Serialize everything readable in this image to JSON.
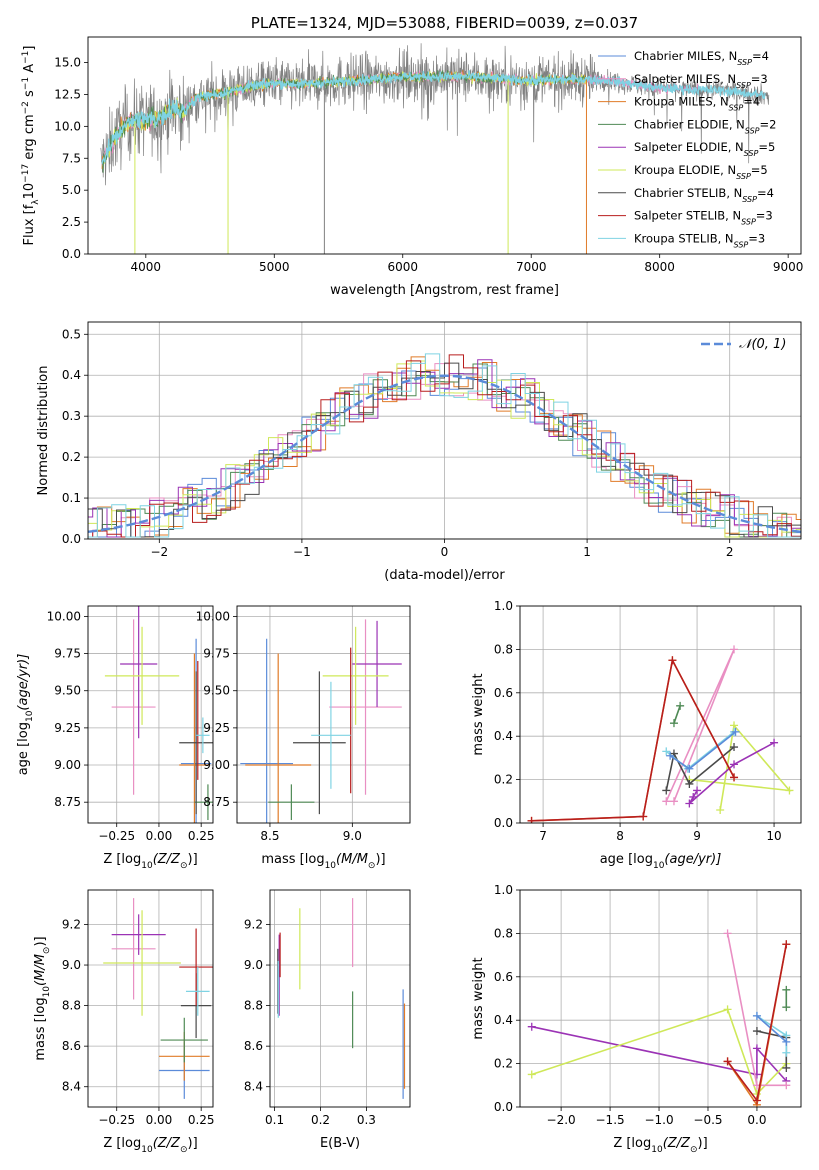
{
  "colors": {
    "chabrier_miles": "#5b8bd9",
    "salpeter_miles": "#e98fc3",
    "kroupa_miles": "#e07b28",
    "chabrier_elodie": "#4f8a55",
    "salpeter_elodie": "#9b33b5",
    "kroupa_elodie": "#cfe859",
    "chabrier_stelib": "#4a4a4a",
    "salpeter_stelib": "#b81e1e",
    "kroupa_stelib": "#7fd3e3",
    "gaussian": "#5b8bd9",
    "grid": "#b0b0b0",
    "spectrum_data": "#808080"
  },
  "chart_data": [
    {
      "id": "spectrum",
      "type": "line",
      "title": "PLATE=1324, MJD=53088, FIBERID=0039, z=0.037",
      "xlabel": "wavelength [Angstrom, rest frame]",
      "ylabel": "Flux [f",
      "ylabel_parts": [
        "Flux [f",
        "λ",
        "10",
        "−17",
        " erg cm",
        "−2",
        " s",
        "−1",
        " A",
        "−1",
        "]"
      ],
      "xlim": [
        3550,
        9100
      ],
      "ylim": [
        0,
        17
      ],
      "xticks": [
        4000,
        5000,
        6000,
        7000,
        8000,
        9000
      ],
      "xtick_labels": [
        "4000",
        "5000",
        "6000",
        "7000",
        "8000",
        "9000"
      ],
      "yticks": [
        0.0,
        2.5,
        5.0,
        7.5,
        10.0,
        12.5,
        15.0
      ],
      "ytick_labels": [
        "0.0",
        "2.5",
        "5.0",
        "7.5",
        "10.0",
        "12.5",
        "15.0"
      ],
      "grid": false,
      "legend_position": "top-right",
      "legend": [
        {
          "label": "Chabrier MILES, N",
          "sub": "SSP",
          "tail": "=4",
          "color": "chabrier_miles"
        },
        {
          "label": "Salpeter MILES, N",
          "sub": "SSP",
          "tail": "=3",
          "color": "salpeter_miles"
        },
        {
          "label": "Kroupa MILES, N",
          "sub": "SSP",
          "tail": "=4",
          "color": "kroupa_miles"
        },
        {
          "label": "Chabrier ELODIE, N",
          "sub": "SSP",
          "tail": "=2",
          "color": "chabrier_elodie"
        },
        {
          "label": "Salpeter ELODIE, N",
          "sub": "SSP",
          "tail": "=5",
          "color": "salpeter_elodie"
        },
        {
          "label": "Kroupa ELODIE, N",
          "sub": "SSP",
          "tail": "=5",
          "color": "kroupa_elodie"
        },
        {
          "label": "Chabrier STELIB, N",
          "sub": "SSP",
          "tail": "=4",
          "color": "chabrier_stelib"
        },
        {
          "label": "Salpeter STELIB, N",
          "sub": "SSP",
          "tail": "=3",
          "color": "salpeter_stelib"
        },
        {
          "label": "Kroupa STELIB, N",
          "sub": "SSP",
          "tail": "=3",
          "color": "kroupa_stelib"
        }
      ],
      "continuum": [
        [
          3650,
          6.9
        ],
        [
          3750,
          9.0
        ],
        [
          3850,
          10.2
        ],
        [
          3950,
          10.5
        ],
        [
          4100,
          10.6
        ],
        [
          4200,
          11.4
        ],
        [
          4300,
          11.2
        ],
        [
          4400,
          12.3
        ],
        [
          4600,
          12.6
        ],
        [
          4800,
          13.1
        ],
        [
          5000,
          13.4
        ],
        [
          5200,
          13.3
        ],
        [
          5500,
          13.5
        ],
        [
          6000,
          13.9
        ],
        [
          6500,
          13.9
        ],
        [
          7000,
          13.6
        ],
        [
          7400,
          13.7
        ],
        [
          7600,
          13.6
        ],
        [
          8000,
          13.0
        ],
        [
          8500,
          12.8
        ],
        [
          8850,
          12.4
        ]
      ],
      "noise_amplitude": 2.6,
      "drops": [
        {
          "x": 3915,
          "to": 0,
          "color": "kroupa_elodie"
        },
        {
          "x": 4640,
          "to": 0,
          "color": "kroupa_elodie"
        },
        {
          "x": 5390,
          "to": 0,
          "color": "spectrum_data"
        },
        {
          "x": 6820,
          "to": 0,
          "color": "kroupa_elodie"
        },
        {
          "x": 7430,
          "to": 0,
          "color": "kroupa_miles"
        }
      ]
    },
    {
      "id": "residuals",
      "type": "histogram",
      "xlabel": "(data-model)/error",
      "ylabel": "Normed distribution",
      "xlim": [
        -2.5,
        2.5
      ],
      "ylim": [
        0,
        0.53
      ],
      "xticks": [
        -2,
        -1,
        0,
        1,
        2
      ],
      "xtick_labels": [
        "−2",
        "−1",
        "0",
        "1",
        "2"
      ],
      "yticks": [
        0.0,
        0.1,
        0.2,
        0.3,
        0.4,
        0.5
      ],
      "ytick_labels": [
        "0.0",
        "0.1",
        "0.2",
        "0.3",
        "0.4",
        "0.5"
      ],
      "grid": true,
      "legend_position": "top-right",
      "gaussian_label": "𝒩(0, 1)",
      "bin_width": 0.1,
      "series_colors": [
        "chabrier_miles",
        "salpeter_miles",
        "kroupa_miles",
        "chabrier_elodie",
        "salpeter_elodie",
        "kroupa_elodie",
        "chabrier_stelib",
        "salpeter_stelib",
        "kroupa_stelib"
      ]
    },
    {
      "id": "age_vs_z",
      "type": "errorbar",
      "xlabel": "Z [log",
      "xlabel_parts": [
        "Z [log",
        "10",
        "(Z/Z",
        "⊙",
        ")]"
      ],
      "ylabel_parts": [
        "age  [log",
        "10",
        "(age/yr)]"
      ],
      "xlim": [
        -0.42,
        0.32
      ],
      "ylim": [
        8.61,
        10.07
      ],
      "xticks": [
        -0.25,
        0.0,
        0.25
      ],
      "xtick_labels": [
        "−0.25",
        "0.00",
        "0.25"
      ],
      "yticks": [
        8.75,
        9.0,
        9.25,
        9.5,
        9.75,
        10.0
      ],
      "ytick_labels": [
        "8.75",
        "9.00",
        "9.25",
        "9.50",
        "9.75",
        "10.00"
      ],
      "grid": true,
      "points": [
        {
          "color": "chabrier_miles",
          "x": 0.22,
          "xerr": 0.09,
          "y": 9.01,
          "yerr": 0.84
        },
        {
          "color": "salpeter_miles",
          "x": -0.15,
          "xerr": 0.13,
          "y": 9.39,
          "yerr": 0.59
        },
        {
          "color": "kroupa_miles",
          "x": 0.21,
          "xerr": 0.09,
          "y": 9.0,
          "yerr": 0.75
        },
        {
          "color": "chabrier_elodie",
          "x": 0.29,
          "xerr": 0.08,
          "y": 8.75,
          "yerr": 0.12
        },
        {
          "color": "salpeter_elodie",
          "x": -0.12,
          "xerr": 0.11,
          "y": 9.68,
          "yerr": 0.5
        },
        {
          "color": "kroupa_elodie",
          "x": -0.1,
          "xerr": 0.22,
          "y": 9.6,
          "yerr": 0.33
        },
        {
          "color": "chabrier_stelib",
          "x": 0.22,
          "xerr": 0.1,
          "y": 9.15,
          "yerr": 0.48
        },
        {
          "color": "salpeter_stelib",
          "x": 0.23,
          "xerr": 0.0,
          "y": 9.3,
          "yerr": 0.4
        },
        {
          "color": "kroupa_stelib",
          "x": 0.26,
          "xerr": 0.04,
          "y": 9.2,
          "yerr": 0.12
        }
      ]
    },
    {
      "id": "age_vs_mass",
      "type": "errorbar",
      "xlabel_parts": [
        "mass [log",
        "10",
        "(M/M",
        "⊙",
        ")]"
      ],
      "xlim": [
        8.3,
        9.35
      ],
      "ylim": [
        8.61,
        10.07
      ],
      "xticks": [
        8.5,
        9.0
      ],
      "xtick_labels": [
        "8.5",
        "9.0"
      ],
      "yticks": [
        8.75,
        9.0,
        9.25,
        9.5,
        9.75,
        10.0
      ],
      "ytick_labels": [
        "8.75",
        "9.00",
        "9.25",
        "9.50",
        "9.75",
        "10.00"
      ],
      "grid": true,
      "points": [
        {
          "color": "chabrier_miles",
          "x": 8.48,
          "xerr": 0.16,
          "y": 9.01,
          "yerr": 0.84
        },
        {
          "color": "salpeter_miles",
          "x": 9.08,
          "xerr": 0.22,
          "y": 9.39,
          "yerr": 0.59
        },
        {
          "color": "kroupa_miles",
          "x": 8.55,
          "xerr": 0.2,
          "y": 9.0,
          "yerr": 0.75
        },
        {
          "color": "chabrier_elodie",
          "x": 8.63,
          "xerr": 0.14,
          "y": 8.75,
          "yerr": 0.12
        },
        {
          "color": "salpeter_elodie",
          "x": 9.15,
          "xerr": 0.15,
          "y": 9.68,
          "yerr": 0.29
        },
        {
          "color": "kroupa_elodie",
          "x": 9.02,
          "xerr": 0.2,
          "y": 9.6,
          "yerr": 0.33
        },
        {
          "color": "chabrier_stelib",
          "x": 8.8,
          "xerr": 0.16,
          "y": 9.15,
          "yerr": 0.48
        },
        {
          "color": "salpeter_stelib",
          "x": 8.99,
          "xerr": 0.0,
          "y": 9.3,
          "yerr": 0.49
        },
        {
          "color": "kroupa_stelib",
          "x": 8.87,
          "xerr": 0.12,
          "y": 9.2,
          "yerr": 0.36
        }
      ]
    },
    {
      "id": "weight_vs_age",
      "type": "line",
      "xlabel_parts": [
        "age  [log",
        "10",
        "(age/yr)]"
      ],
      "ylabel": "mass weight",
      "xlim": [
        6.7,
        10.35
      ],
      "ylim": [
        0,
        1
      ],
      "xticks": [
        7,
        8,
        9,
        10
      ],
      "xtick_labels": [
        "7",
        "8",
        "9",
        "10"
      ],
      "yticks": [
        0.0,
        0.2,
        0.4,
        0.6,
        0.8,
        1.0
      ],
      "ytick_labels": [
        "0.0",
        "0.2",
        "0.4",
        "0.6",
        "0.8",
        "1.0"
      ],
      "grid": true,
      "series": [
        {
          "color": "kroupa_elodie",
          "x": [
            9.3,
            9.48,
            10.2,
            8.9
          ],
          "y": [
            0.06,
            0.45,
            0.15,
            0.2
          ]
        },
        {
          "color": "salpeter_miles",
          "x": [
            8.6,
            9.48,
            8.7
          ],
          "y": [
            0.1,
            0.8,
            0.1
          ]
        },
        {
          "color": "salpeter_elodie",
          "x": [
            10.0,
            9.48,
            8.9,
            8.95,
            9.0
          ],
          "y": [
            0.37,
            0.27,
            0.09,
            0.12,
            0.15
          ]
        },
        {
          "color": "chabrier_stelib",
          "x": [
            8.6,
            8.7,
            8.9,
            9.48
          ],
          "y": [
            0.15,
            0.32,
            0.18,
            0.35
          ]
        },
        {
          "color": "kroupa_stelib",
          "x": [
            8.6,
            8.88,
            9.48
          ],
          "y": [
            0.33,
            0.25,
            0.42
          ]
        },
        {
          "color": "chabrier_miles",
          "x": [
            8.65,
            8.9,
            9.5
          ],
          "y": [
            0.31,
            0.25,
            0.42
          ]
        },
        {
          "color": "chabrier_elodie",
          "x": [
            8.7,
            8.78
          ],
          "y": [
            0.46,
            0.54
          ]
        },
        {
          "color": "kroupa_miles",
          "x": [
            6.85,
            8.3,
            8.68,
            9.48
          ],
          "y": [
            0.01,
            0.03,
            0.75,
            0.21
          ]
        },
        {
          "color": "salpeter_stelib",
          "x": [
            6.85,
            8.3,
            8.68,
            9.48
          ],
          "y": [
            0.01,
            0.03,
            0.75,
            0.21
          ]
        }
      ]
    },
    {
      "id": "mass_vs_z",
      "type": "errorbar",
      "xlabel_parts": [
        "Z [log",
        "10",
        "(Z/Z",
        "⊙",
        ")]"
      ],
      "ylabel_parts": [
        "mass [log",
        "10",
        "(M/M",
        "⊙",
        ")]"
      ],
      "xlim": [
        -0.42,
        0.32
      ],
      "ylim": [
        8.3,
        9.37
      ],
      "xticks": [
        -0.25,
        0.0,
        0.25
      ],
      "xtick_labels": [
        "−0.25",
        "0.00",
        "0.25"
      ],
      "yticks": [
        8.4,
        8.6,
        8.8,
        9.0,
        9.2
      ],
      "ytick_labels": [
        "8.4",
        "8.6",
        "8.8",
        "9.0",
        "9.2"
      ],
      "grid": true,
      "points": [
        {
          "color": "chabrier_miles",
          "x": 0.15,
          "xerr": 0.15,
          "y": 8.48,
          "yerr": 0.14
        },
        {
          "color": "salpeter_miles",
          "x": -0.15,
          "xerr": 0.13,
          "y": 9.08,
          "yerr": 0.25
        },
        {
          "color": "kroupa_miles",
          "x": 0.15,
          "xerr": 0.15,
          "y": 8.55,
          "yerr": 0.12
        },
        {
          "color": "chabrier_elodie",
          "x": 0.15,
          "xerr": 0.14,
          "y": 8.63,
          "yerr": 0.11
        },
        {
          "color": "salpeter_elodie",
          "x": -0.12,
          "xerr": 0.16,
          "y": 9.15,
          "yerr": 0.1
        },
        {
          "color": "kroupa_elodie",
          "x": -0.1,
          "xerr": 0.23,
          "y": 9.01,
          "yerr": 0.26
        },
        {
          "color": "chabrier_stelib",
          "x": 0.22,
          "xerr": 0.09,
          "y": 8.8,
          "yerr": 0.16
        },
        {
          "color": "salpeter_stelib",
          "x": 0.22,
          "xerr": 0.1,
          "y": 8.99,
          "yerr": 0.19
        },
        {
          "color": "kroupa_stelib",
          "x": 0.23,
          "xerr": 0.07,
          "y": 8.87,
          "yerr": 0.12
        }
      ]
    },
    {
      "id": "mass_vs_ebv",
      "type": "errorbar",
      "xlabel": "E(B-V)",
      "xlim": [
        0.09,
        0.395
      ],
      "ylim": [
        8.3,
        9.37
      ],
      "xticks": [
        0.1,
        0.2,
        0.3
      ],
      "xtick_labels": [
        "0.1",
        "0.2",
        "0.3"
      ],
      "yticks": [
        8.4,
        8.6,
        8.8,
        9.0,
        9.2
      ],
      "ytick_labels": [
        "8.4",
        "8.6",
        "8.8",
        "9.0",
        "9.2"
      ],
      "grid": true,
      "points": [
        {
          "color": "chabrier_miles",
          "x": 0.38,
          "xerr": 0.0,
          "y": 8.61,
          "yerr": 0.27
        },
        {
          "color": "salpeter_miles",
          "x": 0.27,
          "xerr": 0.0,
          "y": 9.16,
          "yerr": 0.17
        },
        {
          "color": "kroupa_miles",
          "x": 0.383,
          "xerr": 0.0,
          "y": 8.6,
          "yerr": 0.21
        },
        {
          "color": "chabrier_elodie",
          "x": 0.27,
          "xerr": 0.0,
          "y": 8.73,
          "yerr": 0.14
        },
        {
          "color": "salpeter_elodie",
          "x": 0.11,
          "xerr": 0.0,
          "y": 8.95,
          "yerr": 0.2
        },
        {
          "color": "kroupa_elodie",
          "x": 0.155,
          "xerr": 0.0,
          "y": 9.08,
          "yerr": 0.2
        },
        {
          "color": "chabrier_stelib",
          "x": 0.107,
          "xerr": 0.0,
          "y": 8.92,
          "yerr": 0.16
        },
        {
          "color": "salpeter_stelib",
          "x": 0.112,
          "xerr": 0.0,
          "y": 9.05,
          "yerr": 0.11
        },
        {
          "color": "kroupa_stelib",
          "x": 0.108,
          "xerr": 0.0,
          "y": 8.88,
          "yerr": 0.14
        }
      ]
    },
    {
      "id": "weight_vs_z",
      "type": "line",
      "xlabel_parts": [
        "Z [log",
        "10",
        "(Z/Z",
        "⊙",
        ")]"
      ],
      "ylabel": "mass weight",
      "xlim": [
        -2.42,
        0.45
      ],
      "ylim": [
        0,
        1
      ],
      "xticks": [
        -2.0,
        -1.5,
        -1.0,
        -0.5,
        0.0
      ],
      "xtick_labels": [
        "−2.0",
        "−1.5",
        "−1.0",
        "−0.5",
        "0.0"
      ],
      "yticks": [
        0.0,
        0.2,
        0.4,
        0.6,
        0.8,
        1.0
      ],
      "ytick_labels": [
        "0.0",
        "0.2",
        "0.4",
        "0.6",
        "0.8",
        "1.0"
      ],
      "grid": true,
      "series": [
        {
          "color": "salpeter_elodie",
          "x": [
            -2.3,
            0.0,
            0.0,
            0.3
          ],
          "y": [
            0.37,
            0.15,
            0.27,
            0.12
          ]
        },
        {
          "color": "kroupa_elodie",
          "x": [
            -2.3,
            -0.3,
            0.0,
            0.3
          ],
          "y": [
            0.15,
            0.45,
            0.06,
            0.2
          ]
        },
        {
          "color": "salpeter_miles",
          "x": [
            -0.3,
            0.0,
            0.3
          ],
          "y": [
            0.8,
            0.1,
            0.1
          ]
        },
        {
          "color": "chabrier_stelib",
          "x": [
            0.0,
            0.3,
            0.3
          ],
          "y": [
            0.35,
            0.32,
            0.18
          ]
        },
        {
          "color": "kroupa_stelib",
          "x": [
            0.0,
            0.3,
            0.3
          ],
          "y": [
            0.42,
            0.33,
            0.25
          ]
        },
        {
          "color": "chabrier_miles",
          "x": [
            0.0,
            0.3
          ],
          "y": [
            0.42,
            0.3
          ]
        },
        {
          "color": "chabrier_elodie",
          "x": [
            0.3,
            0.3
          ],
          "y": [
            0.46,
            0.54
          ]
        },
        {
          "color": "kroupa_miles",
          "x": [
            -0.3,
            0.0,
            0.3
          ],
          "y": [
            0.21,
            0.01,
            0.75
          ]
        },
        {
          "color": "salpeter_stelib",
          "x": [
            -0.3,
            0.0,
            0.3
          ],
          "y": [
            0.21,
            0.03,
            0.75
          ]
        }
      ]
    }
  ]
}
